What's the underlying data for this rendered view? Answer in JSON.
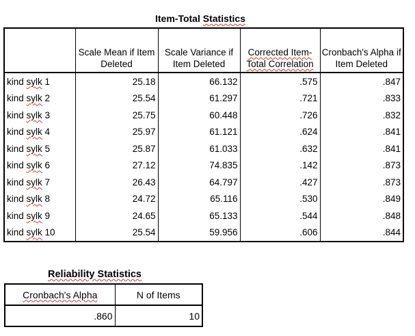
{
  "item_total": {
    "title": "Item-Total Statistics",
    "headers": {
      "scale_mean": "Scale Mean if Item Deleted",
      "scale_variance": "Scale Variance if Item Deleted",
      "corrected_corr": "Corrected Item-Total Correlation",
      "alpha_deleted": "Cronbach's Alpha if Item Deleted"
    },
    "rows": [
      {
        "label": "kind sylk 1",
        "mean": "25.18",
        "variance": "66.132",
        "corr": ".575",
        "alpha": ".847"
      },
      {
        "label": "kind sylk 2",
        "mean": "25.54",
        "variance": "61.297",
        "corr": ".721",
        "alpha": ".833"
      },
      {
        "label": "kind sylk 3",
        "mean": "25.75",
        "variance": "60.448",
        "corr": ".726",
        "alpha": ".832"
      },
      {
        "label": "kind sylk 4",
        "mean": "25.97",
        "variance": "61.121",
        "corr": ".624",
        "alpha": ".841"
      },
      {
        "label": "kind sylk 5",
        "mean": "25.87",
        "variance": "61.033",
        "corr": ".632",
        "alpha": ".841"
      },
      {
        "label": "kind sylk 6",
        "mean": "27.12",
        "variance": "74.835",
        "corr": ".142",
        "alpha": ".873"
      },
      {
        "label": "kind sylk 7",
        "mean": "26.43",
        "variance": "64.797",
        "corr": ".427",
        "alpha": ".873"
      },
      {
        "label": "kind sylk 8",
        "mean": "24.72",
        "variance": "65.116",
        "corr": ".530",
        "alpha": ".849"
      },
      {
        "label": "kind sylk 9",
        "mean": "24.65",
        "variance": "65.133",
        "corr": ".544",
        "alpha": ".848"
      },
      {
        "label": "kind sylk 10",
        "mean": "25.54",
        "variance": "59.956",
        "corr": ".606",
        "alpha": ".844"
      }
    ]
  },
  "reliability": {
    "title": "Reliability Statistics",
    "headers": {
      "alpha": "Cronbach's Alpha",
      "n_items": "N of Items"
    },
    "values": {
      "alpha": ".860",
      "n_items": "10"
    }
  }
}
